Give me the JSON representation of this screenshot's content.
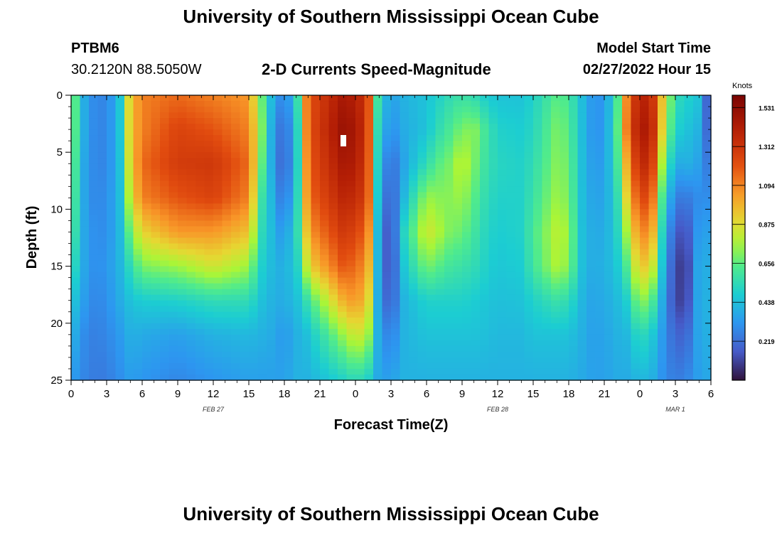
{
  "page": {
    "title": "University of Southern Mississippi Ocean Cube",
    "bottom_title": "University of Southern Mississippi Ocean Cube",
    "station_id": "PTBM6",
    "station_coords": "30.2120N  88.5050W",
    "subtitle": "2-D Currents Speed-Magnitude",
    "model_start_label": "Model Start Time",
    "model_start_value": "02/27/2022 Hour 15"
  },
  "chart_data": {
    "type": "heatmap",
    "title": "2-D Currents Speed-Magnitude",
    "xlabel": "Forecast Time(Z)",
    "ylabel": "Depth (ft)",
    "x_range": [
      0,
      54
    ],
    "y_range": [
      0,
      25
    ],
    "x_tick_values": [
      0,
      3,
      6,
      9,
      12,
      15,
      18,
      21,
      24,
      27,
      30,
      33,
      36,
      39,
      42,
      45,
      48,
      51,
      54
    ],
    "x_tick_labels": [
      "0",
      "3",
      "6",
      "9",
      "12",
      "15",
      "18",
      "21",
      "0",
      "3",
      "6",
      "9",
      "12",
      "15",
      "18",
      "21",
      "0",
      "3",
      "6"
    ],
    "y_tick_values": [
      0,
      5,
      10,
      15,
      20,
      25
    ],
    "y_tick_labels": [
      "0",
      "5",
      "10",
      "15",
      "20",
      "25"
    ],
    "date_labels": [
      {
        "text": "FEB 27",
        "x": 12
      },
      {
        "text": "FEB 28",
        "x": 36
      },
      {
        "text": "MAR 1",
        "x": 51
      }
    ],
    "colorbar": {
      "units": "Knots",
      "min": 0,
      "max": 1.6,
      "ticks": [
        0.219,
        0.438,
        0.656,
        0.875,
        1.094,
        1.312,
        1.531
      ],
      "tick_labels": [
        "0.219",
        "0.438",
        "0.656",
        "0.875",
        "1.094",
        "1.312",
        "1.531"
      ]
    },
    "x_hours": [
      0,
      0.5,
      1,
      2,
      3,
      4,
      4.5,
      5,
      6,
      9,
      12,
      15,
      16,
      17,
      18,
      19,
      19.5,
      20,
      23,
      24,
      25,
      25.5,
      26,
      27,
      28,
      30,
      31,
      32,
      33,
      34,
      35,
      36,
      38,
      39,
      41,
      42,
      43,
      44,
      45,
      46,
      47,
      48,
      49,
      50,
      51,
      52,
      53,
      54
    ],
    "depths_ft": [
      0,
      3,
      6,
      9,
      12,
      15,
      18,
      21,
      25
    ],
    "speed_knots": [
      [
        0.9,
        0.88,
        0.86,
        0.84,
        0.8,
        0.7,
        0.55,
        0.45,
        0.4
      ],
      [
        0.55,
        0.55,
        0.52,
        0.5,
        0.48,
        0.45,
        0.4,
        0.35,
        0.3
      ],
      [
        0.4,
        0.4,
        0.38,
        0.38,
        0.38,
        0.38,
        0.35,
        0.3,
        0.28
      ],
      [
        0.28,
        0.28,
        0.28,
        0.28,
        0.3,
        0.3,
        0.28,
        0.26,
        0.25
      ],
      [
        0.28,
        0.28,
        0.28,
        0.3,
        0.3,
        0.32,
        0.3,
        0.28,
        0.25
      ],
      [
        0.4,
        0.4,
        0.4,
        0.4,
        0.4,
        0.4,
        0.38,
        0.33,
        0.3
      ],
      [
        0.65,
        0.65,
        0.6,
        0.55,
        0.5,
        0.45,
        0.4,
        0.35,
        0.3
      ],
      [
        0.95,
        0.95,
        0.92,
        0.85,
        0.7,
        0.55,
        0.45,
        0.4,
        0.35
      ],
      [
        1.1,
        1.1,
        1.15,
        1.1,
        0.9,
        0.7,
        0.48,
        0.38,
        0.32
      ],
      [
        1.15,
        1.25,
        1.28,
        1.2,
        1.05,
        0.75,
        0.5,
        0.35,
        0.28
      ],
      [
        1.1,
        1.2,
        1.3,
        1.25,
        1.05,
        0.85,
        0.55,
        0.4,
        0.32
      ],
      [
        1.05,
        1.1,
        1.15,
        1.1,
        0.95,
        0.75,
        0.55,
        0.42,
        0.35
      ],
      [
        0.7,
        0.75,
        0.7,
        0.6,
        0.55,
        0.5,
        0.45,
        0.4,
        0.35
      ],
      [
        0.4,
        0.35,
        0.35,
        0.4,
        0.42,
        0.42,
        0.4,
        0.38,
        0.35
      ],
      [
        0.25,
        0.18,
        0.15,
        0.2,
        0.3,
        0.38,
        0.38,
        0.32,
        0.35
      ],
      [
        0.5,
        0.45,
        0.45,
        0.5,
        0.55,
        0.5,
        0.45,
        0.4,
        0.4
      ],
      [
        0.8,
        0.75,
        0.7,
        0.65,
        0.6,
        0.55,
        0.45,
        0.4,
        0.4
      ],
      [
        1.2,
        1.2,
        1.18,
        1.15,
        1.05,
        0.9,
        0.6,
        0.45,
        0.4
      ],
      [
        1.45,
        1.5,
        1.45,
        1.38,
        1.3,
        1.2,
        1.0,
        0.75,
        0.5
      ],
      [
        1.4,
        1.45,
        1.42,
        1.35,
        1.25,
        1.15,
        1.05,
        0.85,
        0.55
      ],
      [
        1.3,
        1.3,
        1.28,
        1.25,
        1.15,
        1.05,
        0.95,
        0.8,
        0.5
      ],
      [
        0.9,
        0.85,
        0.85,
        0.85,
        0.8,
        0.75,
        0.65,
        0.55,
        0.45
      ],
      [
        0.5,
        0.45,
        0.4,
        0.35,
        0.3,
        0.3,
        0.3,
        0.35,
        0.35
      ],
      [
        0.35,
        0.3,
        0.2,
        0.15,
        0.1,
        0.1,
        0.15,
        0.25,
        0.35
      ],
      [
        0.4,
        0.38,
        0.35,
        0.4,
        0.5,
        0.45,
        0.4,
        0.4,
        0.4
      ],
      [
        0.45,
        0.45,
        0.55,
        0.75,
        0.85,
        0.7,
        0.5,
        0.45,
        0.4
      ],
      [
        0.5,
        0.55,
        0.65,
        0.72,
        0.78,
        0.65,
        0.5,
        0.45,
        0.4
      ],
      [
        0.55,
        0.62,
        0.7,
        0.72,
        0.7,
        0.6,
        0.5,
        0.45,
        0.4
      ],
      [
        0.58,
        0.7,
        0.82,
        0.75,
        0.68,
        0.58,
        0.5,
        0.45,
        0.4
      ],
      [
        0.55,
        0.72,
        0.7,
        0.65,
        0.6,
        0.55,
        0.48,
        0.45,
        0.4
      ],
      [
        0.48,
        0.6,
        0.58,
        0.55,
        0.52,
        0.5,
        0.46,
        0.44,
        0.4
      ],
      [
        0.45,
        0.5,
        0.52,
        0.5,
        0.48,
        0.46,
        0.44,
        0.42,
        0.4
      ],
      [
        0.45,
        0.48,
        0.5,
        0.5,
        0.5,
        0.48,
        0.45,
        0.42,
        0.4
      ],
      [
        0.5,
        0.52,
        0.55,
        0.58,
        0.62,
        0.6,
        0.5,
        0.45,
        0.4
      ],
      [
        0.65,
        0.7,
        0.72,
        0.75,
        0.8,
        0.78,
        0.58,
        0.45,
        0.4
      ],
      [
        0.62,
        0.65,
        0.68,
        0.7,
        0.75,
        0.72,
        0.55,
        0.45,
        0.4
      ],
      [
        0.45,
        0.45,
        0.45,
        0.45,
        0.45,
        0.45,
        0.42,
        0.4,
        0.38
      ],
      [
        0.32,
        0.32,
        0.34,
        0.36,
        0.38,
        0.38,
        0.36,
        0.35,
        0.35
      ],
      [
        0.32,
        0.32,
        0.34,
        0.36,
        0.38,
        0.4,
        0.38,
        0.36,
        0.35
      ],
      [
        0.55,
        0.58,
        0.55,
        0.5,
        0.48,
        0.45,
        0.42,
        0.4,
        0.38
      ],
      [
        1.15,
        1.18,
        1.05,
        0.95,
        0.8,
        0.65,
        0.5,
        0.42,
        0.38
      ],
      [
        1.4,
        1.45,
        1.38,
        1.25,
        1.1,
        0.95,
        0.75,
        0.55,
        0.42
      ],
      [
        1.35,
        1.4,
        1.32,
        1.2,
        1.05,
        0.88,
        0.65,
        0.48,
        0.4
      ],
      [
        0.9,
        0.85,
        0.7,
        0.55,
        0.45,
        0.4,
        0.35,
        0.32,
        0.3
      ],
      [
        0.55,
        0.5,
        0.38,
        0.25,
        0.15,
        0.1,
        0.1,
        0.18,
        0.25
      ],
      [
        0.5,
        0.45,
        0.4,
        0.25,
        0.15,
        0.1,
        0.12,
        0.2,
        0.28
      ],
      [
        0.45,
        0.4,
        0.35,
        0.3,
        0.35,
        0.4,
        0.4,
        0.38,
        0.35
      ],
      [
        0.05,
        0.1,
        0.2,
        0.3,
        0.35,
        0.38,
        0.4,
        0.4,
        0.38
      ]
    ]
  }
}
